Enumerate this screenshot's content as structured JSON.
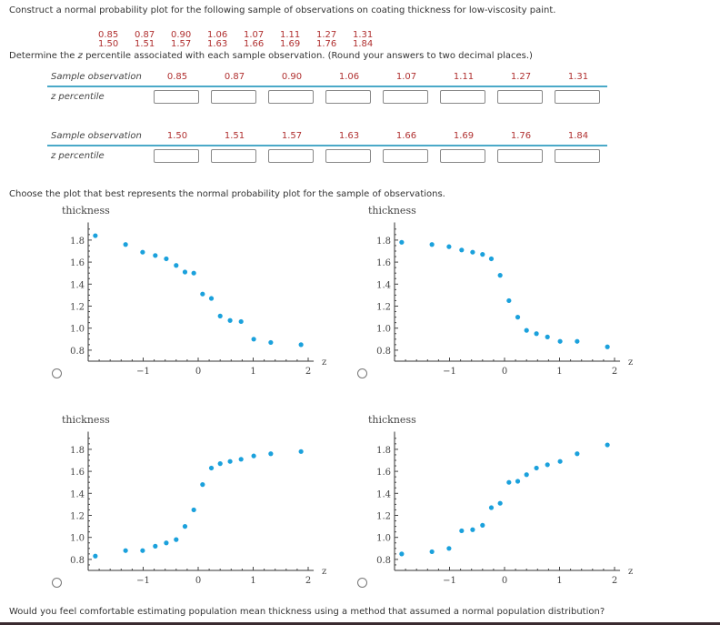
{
  "question": {
    "intro": "Construct a normal probability plot for the following sample of observations on coating thickness for low-viscosity paint.",
    "observations_row1": [
      "0.85",
      "0.87",
      "0.90",
      "1.06",
      "1.07",
      "1.11",
      "1.27",
      "1.31"
    ],
    "observations_row2": [
      "1.50",
      "1.51",
      "1.57",
      "1.63",
      "1.66",
      "1.69",
      "1.76",
      "1.84"
    ],
    "instruction_pre": "Determine the ",
    "instruction_z": "z",
    "instruction_post": " percentile associated with each sample observation. (Round your answers to two decimal places.)",
    "choose_text": "Choose the plot that best represents the normal probability plot for the sample of observations.",
    "final_question": "Would you feel comfortable estimating population mean thickness using a method that assumed a normal population distribution?"
  },
  "table": {
    "obs_label": "Sample observation",
    "z_label": "z percentile",
    "inputs_row1": [
      "",
      "",
      "",
      "",
      "",
      "",
      "",
      ""
    ],
    "inputs_row2": [
      "",
      "",
      "",
      "",
      "",
      "",
      "",
      ""
    ]
  },
  "colors": {
    "accent_line": "#4aa9c8",
    "point": "#1ba1dc",
    "values": "#b03030"
  },
  "chart_data": [
    {
      "type": "scatter",
      "ylabel": "thickness",
      "xlabel": "z",
      "xlim": [
        -2,
        2.1
      ],
      "ylim": [
        0.7,
        1.96
      ],
      "xticks": [
        "-1",
        "0",
        "1",
        "2"
      ],
      "yticks": [
        "0.8",
        "1.0",
        "1.2",
        "1.4",
        "1.6",
        "1.8"
      ],
      "x": [
        -1.87,
        -1.32,
        -1.01,
        -0.78,
        -0.58,
        -0.4,
        -0.24,
        -0.08,
        0.08,
        0.24,
        0.4,
        0.58,
        0.78,
        1.01,
        1.32,
        1.87
      ],
      "y": [
        1.84,
        1.76,
        1.69,
        1.66,
        1.63,
        1.57,
        1.51,
        1.5,
        1.31,
        1.27,
        1.11,
        1.07,
        1.06,
        0.9,
        0.87,
        0.85
      ]
    },
    {
      "type": "scatter",
      "ylabel": "thickness",
      "xlabel": "z",
      "xlim": [
        -2,
        2.1
      ],
      "ylim": [
        0.7,
        1.96
      ],
      "xticks": [
        "-1",
        "0",
        "1",
        "2"
      ],
      "yticks": [
        "0.8",
        "1.0",
        "1.2",
        "1.4",
        "1.6",
        "1.8"
      ],
      "x": [
        -1.87,
        -1.32,
        -1.01,
        -0.78,
        -0.58,
        -0.4,
        -0.24,
        -0.08,
        0.08,
        0.24,
        0.4,
        0.58,
        0.78,
        1.01,
        1.32,
        1.87
      ],
      "y": [
        1.78,
        1.76,
        1.74,
        1.71,
        1.69,
        1.67,
        1.63,
        1.48,
        1.25,
        1.1,
        0.98,
        0.95,
        0.92,
        0.88,
        0.88,
        0.83
      ]
    },
    {
      "type": "scatter",
      "ylabel": "thickness",
      "xlabel": "z",
      "xlim": [
        -2,
        2.1
      ],
      "ylim": [
        0.7,
        1.96
      ],
      "xticks": [
        "-1",
        "0",
        "1",
        "2"
      ],
      "yticks": [
        "0.8",
        "1.0",
        "1.2",
        "1.4",
        "1.6",
        "1.8"
      ],
      "x": [
        -1.87,
        -1.32,
        -1.01,
        -0.78,
        -0.58,
        -0.4,
        -0.24,
        -0.08,
        0.08,
        0.24,
        0.4,
        0.58,
        0.78,
        1.01,
        1.32,
        1.87
      ],
      "y": [
        0.83,
        0.88,
        0.88,
        0.92,
        0.95,
        0.98,
        1.1,
        1.25,
        1.48,
        1.63,
        1.67,
        1.69,
        1.71,
        1.74,
        1.76,
        1.78
      ]
    },
    {
      "type": "scatter",
      "ylabel": "thickness",
      "xlabel": "z",
      "xlim": [
        -2,
        2.1
      ],
      "ylim": [
        0.7,
        1.96
      ],
      "xticks": [
        "-1",
        "0",
        "1",
        "2"
      ],
      "yticks": [
        "0.8",
        "1.0",
        "1.2",
        "1.4",
        "1.6",
        "1.8"
      ],
      "x": [
        -1.87,
        -1.32,
        -1.01,
        -0.78,
        -0.58,
        -0.4,
        -0.24,
        -0.08,
        0.08,
        0.24,
        0.4,
        0.58,
        0.78,
        1.01,
        1.32,
        1.87
      ],
      "y": [
        0.85,
        0.87,
        0.9,
        1.06,
        1.07,
        1.11,
        1.27,
        1.31,
        1.5,
        1.51,
        1.57,
        1.63,
        1.66,
        1.69,
        1.76,
        1.84
      ]
    }
  ]
}
